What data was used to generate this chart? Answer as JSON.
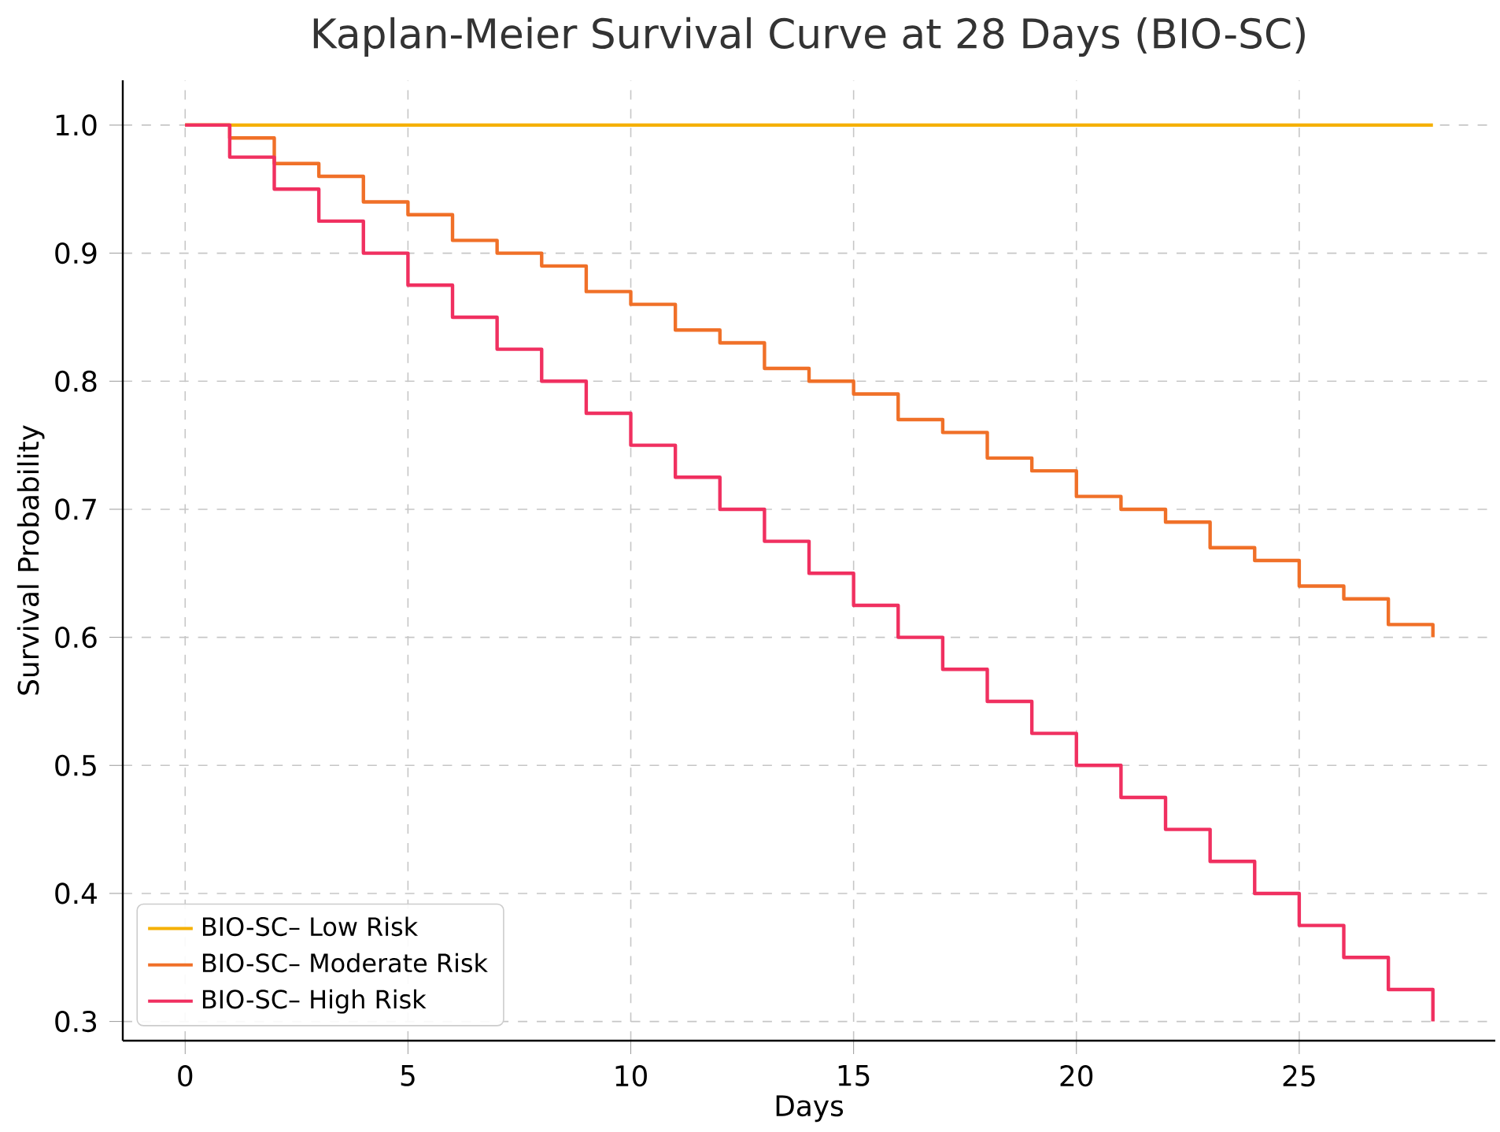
{
  "chart_data": {
    "type": "step",
    "title": "Kaplan-Meier Survival Curve at 28 Days (BIO-SC)",
    "xlabel": "Days",
    "ylabel": "Survival Probability",
    "x": [
      0,
      1,
      2,
      3,
      4,
      5,
      6,
      7,
      8,
      9,
      10,
      11,
      12,
      13,
      14,
      15,
      16,
      17,
      18,
      19,
      20,
      21,
      22,
      23,
      24,
      25,
      26,
      27,
      28
    ],
    "series": [
      {
        "name": "BIO-SC– Low Risk",
        "color": "#f5b000",
        "values": [
          1,
          1,
          1,
          1,
          1,
          1,
          1,
          1,
          1,
          1,
          1,
          1,
          1,
          1,
          1,
          1,
          1,
          1,
          1,
          1,
          1,
          1,
          1,
          1,
          1,
          1,
          1,
          1,
          1
        ]
      },
      {
        "name": "BIO-SC– Moderate Risk",
        "color": "#f07028",
        "values": [
          1,
          0.99,
          0.97,
          0.96,
          0.94,
          0.93,
          0.91,
          0.9,
          0.89,
          0.87,
          0.86,
          0.84,
          0.83,
          0.81,
          0.8,
          0.79,
          0.77,
          0.76,
          0.74,
          0.73,
          0.71,
          0.7,
          0.69,
          0.67,
          0.66,
          0.64,
          0.63,
          0.61,
          0.6
        ]
      },
      {
        "name": "BIO-SC– High Risk",
        "color": "#f03060",
        "values": [
          1,
          0.975,
          0.95,
          0.925,
          0.9,
          0.875,
          0.85,
          0.825,
          0.8,
          0.775,
          0.75,
          0.725,
          0.7,
          0.675,
          0.65,
          0.625,
          0.6,
          0.575,
          0.55,
          0.525,
          0.5,
          0.475,
          0.45,
          0.425,
          0.4,
          0.375,
          0.35,
          0.325,
          0.3
        ]
      }
    ],
    "xlim": [
      -1.4,
      29.4
    ],
    "ylim": [
      0.285,
      1.035
    ],
    "xticks": [
      0,
      5,
      10,
      15,
      20,
      25
    ],
    "yticks": [
      0.3,
      0.4,
      0.5,
      0.6,
      0.7,
      0.8,
      0.9,
      {
        "value": 1,
        "label": "1.0"
      }
    ],
    "grid": true,
    "legend": "bottom left",
    "marker": "none",
    "line_style": "solid"
  }
}
